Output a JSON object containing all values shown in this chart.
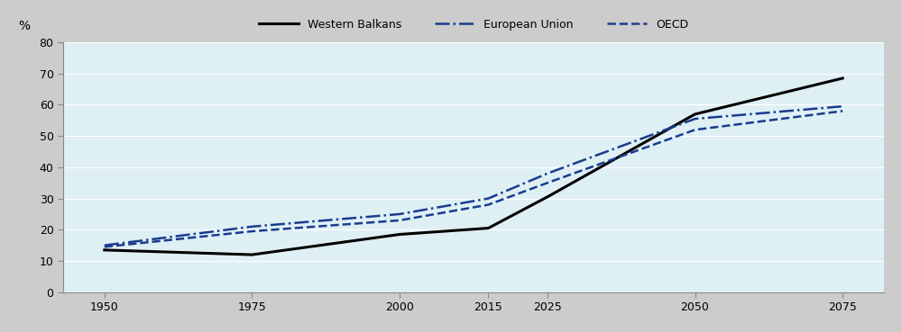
{
  "x_years": [
    1950,
    1975,
    2000,
    2015,
    2025,
    2050,
    2075
  ],
  "western_balkans": [
    13.5,
    12.0,
    18.5,
    20.5,
    30.5,
    57.0,
    68.5
  ],
  "european_union": [
    15.0,
    21.0,
    25.0,
    30.0,
    38.0,
    55.5,
    59.5
  ],
  "oecd": [
    14.5,
    19.5,
    23.0,
    28.0,
    35.0,
    52.0,
    58.0
  ],
  "wb_color": "#000000",
  "eu_color": "#1a3c8f",
  "oecd_color": "#1a3c8f",
  "background_color": "#dff0f5",
  "legend_bg": "#cccccc",
  "fig_bg": "#cccccc",
  "ylabel": "%",
  "ylim": [
    0,
    80
  ],
  "yticks": [
    0,
    10,
    20,
    30,
    40,
    50,
    60,
    70,
    80
  ],
  "xticks": [
    1950,
    1975,
    2000,
    2015,
    2025,
    2050,
    2075
  ],
  "legend_labels": [
    "Western Balkans",
    "European Union",
    "OECD"
  ],
  "grid_color": "#ffffff",
  "axis_fontsize": 9,
  "legend_fontsize": 9,
  "wb_lw": 2.2,
  "eu_lw": 1.8,
  "oecd_lw": 1.8
}
